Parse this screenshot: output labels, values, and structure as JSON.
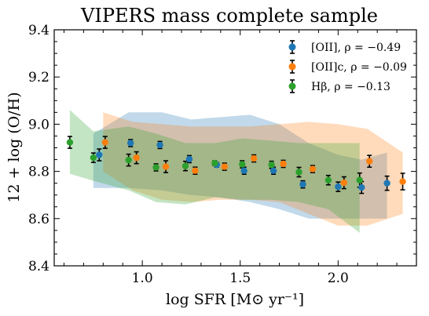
{
  "chart_data": {
    "type": "scatter",
    "title": "VIPERS mass complete sample",
    "xlabel": "log SFR [M⊙ yr⁻¹]",
    "ylabel": "12 + log (O/H)",
    "xlim": [
      0.55,
      2.4
    ],
    "ylim": [
      8.4,
      9.4
    ],
    "xticks": [
      {
        "value": 1.0,
        "label": "1.0"
      },
      {
        "value": 1.5,
        "label": "1.5"
      },
      {
        "value": 2.0,
        "label": "2.0"
      }
    ],
    "yticks": [
      {
        "value": 8.4,
        "label": "8.4"
      },
      {
        "value": 8.6,
        "label": "8.6"
      },
      {
        "value": 8.8,
        "label": "8.8"
      },
      {
        "value": 9.0,
        "label": "9.0"
      },
      {
        "value": 9.2,
        "label": "9.2"
      },
      {
        "value": 9.4,
        "label": "9.4"
      }
    ],
    "legend_position": "top-right",
    "grid": false,
    "series": [
      {
        "name": "[OII], ρ = −0.49",
        "color": "#1f77b4",
        "points": [
          {
            "x": 0.78,
            "y": 8.87,
            "err": 0.025
          },
          {
            "x": 0.94,
            "y": 8.92,
            "err": 0.015
          },
          {
            "x": 1.09,
            "y": 8.912,
            "err": 0.015
          },
          {
            "x": 1.24,
            "y": 8.852,
            "err": 0.015
          },
          {
            "x": 1.38,
            "y": 8.828,
            "err": 0.01
          },
          {
            "x": 1.52,
            "y": 8.803,
            "err": 0.015
          },
          {
            "x": 1.67,
            "y": 8.803,
            "err": 0.015
          },
          {
            "x": 1.82,
            "y": 8.745,
            "err": 0.015
          },
          {
            "x": 2.0,
            "y": 8.735,
            "err": 0.02
          },
          {
            "x": 2.12,
            "y": 8.732,
            "err": 0.025
          },
          {
            "x": 2.25,
            "y": 8.75,
            "err": 0.03
          }
        ],
        "band": {
          "x": [
            0.75,
            0.93,
            1.1,
            1.25,
            1.4,
            1.55,
            1.7,
            1.85,
            2.0,
            2.12,
            2.25
          ],
          "upper": [
            8.96,
            9.05,
            9.05,
            9.02,
            9.03,
            9.04,
            9.0,
            8.92,
            8.87,
            8.85,
            8.88
          ],
          "lower": [
            8.73,
            8.73,
            8.72,
            8.7,
            8.69,
            8.67,
            8.64,
            8.6,
            8.6,
            8.6,
            8.6
          ]
        }
      },
      {
        "name": "[OII]c, ρ = −0.09",
        "color": "#ff7f0e",
        "points": [
          {
            "x": 0.81,
            "y": 8.923,
            "err": 0.025
          },
          {
            "x": 0.97,
            "y": 8.858,
            "err": 0.025
          },
          {
            "x": 1.12,
            "y": 8.82,
            "err": 0.025
          },
          {
            "x": 1.27,
            "y": 8.803,
            "err": 0.015
          },
          {
            "x": 1.42,
            "y": 8.82,
            "err": 0.015
          },
          {
            "x": 1.57,
            "y": 8.855,
            "err": 0.015
          },
          {
            "x": 1.72,
            "y": 8.832,
            "err": 0.015
          },
          {
            "x": 1.87,
            "y": 8.81,
            "err": 0.015
          },
          {
            "x": 2.03,
            "y": 8.752,
            "err": 0.025
          },
          {
            "x": 2.16,
            "y": 8.843,
            "err": 0.025
          },
          {
            "x": 2.33,
            "y": 8.757,
            "err": 0.035
          }
        ],
        "band": {
          "x": [
            0.8,
            0.95,
            1.1,
            1.25,
            1.4,
            1.55,
            1.7,
            1.85,
            2.0,
            2.15,
            2.33
          ],
          "upper": [
            9.05,
            9.01,
            9.0,
            8.99,
            8.99,
            8.99,
            9.0,
            9.01,
            9.0,
            8.98,
            8.88
          ],
          "lower": [
            8.8,
            8.72,
            8.68,
            8.67,
            8.68,
            8.68,
            8.67,
            8.62,
            8.57,
            8.57,
            8.62
          ]
        }
      },
      {
        "name": "Hβ, ρ = −0.13",
        "color": "#2ca02c",
        "points": [
          {
            "x": 0.63,
            "y": 8.923,
            "err": 0.025
          },
          {
            "x": 0.75,
            "y": 8.858,
            "err": 0.02
          },
          {
            "x": 0.93,
            "y": 8.848,
            "err": 0.025
          },
          {
            "x": 1.07,
            "y": 8.817,
            "err": 0.015
          },
          {
            "x": 1.22,
            "y": 8.823,
            "err": 0.02
          },
          {
            "x": 1.37,
            "y": 8.835,
            "err": 0.01
          },
          {
            "x": 1.51,
            "y": 8.83,
            "err": 0.015
          },
          {
            "x": 1.66,
            "y": 8.828,
            "err": 0.015
          },
          {
            "x": 1.8,
            "y": 8.797,
            "err": 0.02
          },
          {
            "x": 1.95,
            "y": 8.763,
            "err": 0.02
          },
          {
            "x": 2.11,
            "y": 8.763,
            "err": 0.03
          }
        ],
        "band": {
          "x": [
            0.63,
            0.75,
            0.93,
            1.07,
            1.22,
            1.37,
            1.51,
            1.66,
            1.8,
            1.95,
            2.11
          ],
          "upper": [
            9.06,
            8.97,
            8.99,
            8.96,
            8.92,
            8.92,
            8.94,
            8.93,
            8.92,
            8.92,
            8.92
          ],
          "lower": [
            8.79,
            8.76,
            8.72,
            8.67,
            8.66,
            8.69,
            8.68,
            8.68,
            8.67,
            8.64,
            8.54
          ]
        }
      }
    ]
  }
}
